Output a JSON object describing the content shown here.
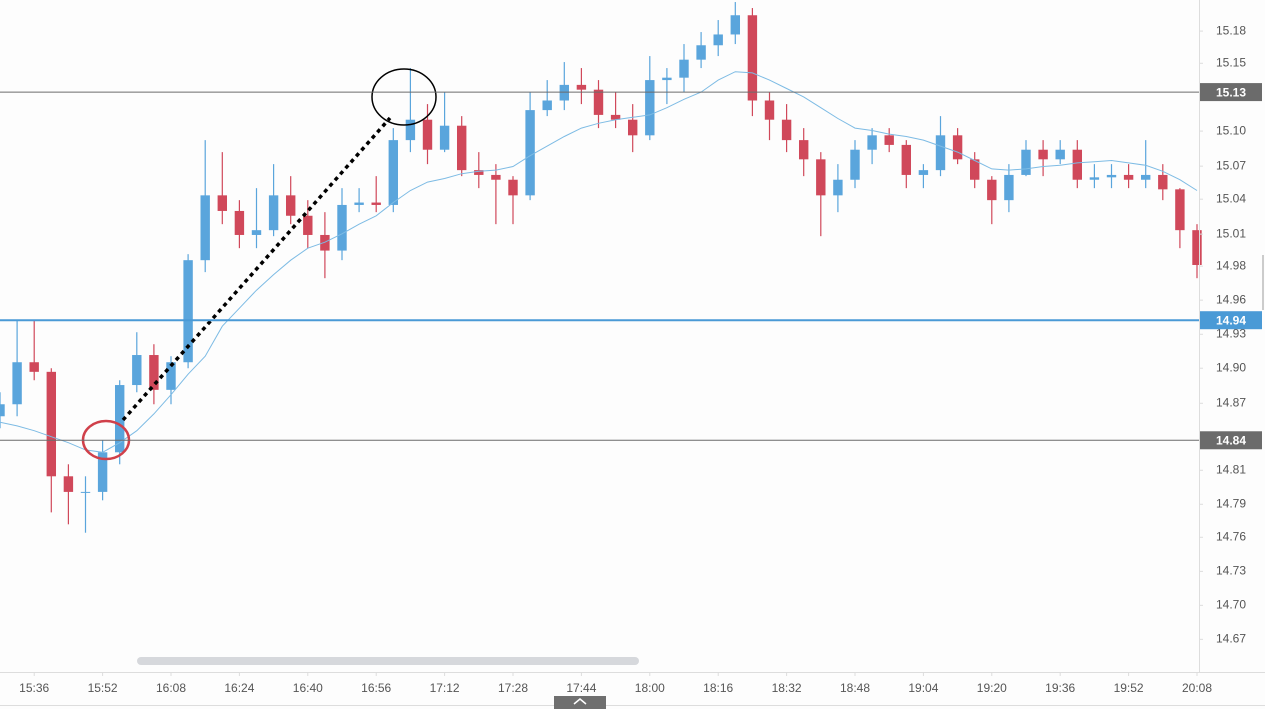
{
  "chart_data": {
    "type": "candlestick",
    "x": [
      "15:28",
      "15:32",
      "15:36",
      "15:40",
      "15:44",
      "15:48",
      "15:52",
      "15:56",
      "16:00",
      "16:04",
      "16:08",
      "16:12",
      "16:16",
      "16:20",
      "16:24",
      "16:28",
      "16:32",
      "16:36",
      "16:40",
      "16:44",
      "16:48",
      "16:52",
      "16:56",
      "17:00",
      "17:04",
      "17:08",
      "17:12",
      "17:16",
      "17:20",
      "17:24",
      "17:28",
      "17:32",
      "17:36",
      "17:40",
      "17:44",
      "17:48",
      "17:52",
      "17:56",
      "18:00",
      "18:04",
      "18:08",
      "18:12",
      "18:16",
      "18:20",
      "18:24",
      "18:28",
      "18:32",
      "18:36",
      "18:40",
      "18:44",
      "18:48",
      "18:52",
      "18:56",
      "19:00",
      "19:04",
      "19:08",
      "19:12",
      "19:16",
      "19:20",
      "19:24",
      "19:28",
      "19:32",
      "19:36",
      "19:40",
      "19:44",
      "19:48",
      "19:52",
      "19:56",
      "20:00",
      "20:04",
      "20:08"
    ],
    "open": [
      14.86,
      14.87,
      14.905,
      14.897,
      14.81,
      14.797,
      14.797,
      14.83,
      14.886,
      14.911,
      14.882,
      14.905,
      14.99,
      15.044,
      15.031,
      15.011,
      15.015,
      15.044,
      15.027,
      15.011,
      14.998,
      15.036,
      15.038,
      15.036,
      15.09,
      15.107,
      15.082,
      15.102,
      15.065,
      15.061,
      15.057,
      15.044,
      15.115,
      15.123,
      15.136,
      15.132,
      15.111,
      15.107,
      15.094,
      15.14,
      15.142,
      15.157,
      15.169,
      15.178,
      15.194,
      15.123,
      15.107,
      15.09,
      15.074,
      15.044,
      15.057,
      15.082,
      15.094,
      15.086,
      15.061,
      15.065,
      15.094,
      15.074,
      15.057,
      15.04,
      15.061,
      15.082,
      15.074,
      15.082,
      15.057,
      15.059,
      15.061,
      15.057,
      15.061,
      15.049,
      15.015
    ],
    "high": [
      14.88,
      14.94,
      14.94,
      14.9,
      14.82,
      14.81,
      14.84,
      14.89,
      14.93,
      14.92,
      14.91,
      14.995,
      15.09,
      15.08,
      15.04,
      15.05,
      15.07,
      15.06,
      15.04,
      15.03,
      15.05,
      15.05,
      15.06,
      15.1,
      15.15,
      15.12,
      15.13,
      15.11,
      15.08,
      15.07,
      15.06,
      15.13,
      15.14,
      15.155,
      15.15,
      15.14,
      15.13,
      15.12,
      15.16,
      15.15,
      15.17,
      15.18,
      15.19,
      15.205,
      15.2,
      15.13,
      15.12,
      15.1,
      15.08,
      15.07,
      15.09,
      15.1,
      15.1,
      15.09,
      15.07,
      15.11,
      15.1,
      15.08,
      15.06,
      15.07,
      15.09,
      15.09,
      15.09,
      15.09,
      15.07,
      15.07,
      15.07,
      15.09,
      15.07,
      15.05,
      15.02
    ],
    "low": [
      14.85,
      14.86,
      14.89,
      14.78,
      14.77,
      14.763,
      14.79,
      14.82,
      14.88,
      14.87,
      14.87,
      14.9,
      14.98,
      15.02,
      15.0,
      15.0,
      15.01,
      15.02,
      15.0,
      14.975,
      14.99,
      15.03,
      15.03,
      15.03,
      15.08,
      15.07,
      15.08,
      15.06,
      15.05,
      15.02,
      15.02,
      15.04,
      15.11,
      15.115,
      15.12,
      15.1,
      15.1,
      15.08,
      15.09,
      15.12,
      15.13,
      15.15,
      15.16,
      15.17,
      15.11,
      15.09,
      15.08,
      15.06,
      15.01,
      15.03,
      15.05,
      15.07,
      15.08,
      15.05,
      15.05,
      15.06,
      15.07,
      15.05,
      15.02,
      15.03,
      15.06,
      15.06,
      15.07,
      15.05,
      15.05,
      15.05,
      15.05,
      15.05,
      15.04,
      15.0,
      14.975
    ],
    "close": [
      14.87,
      14.905,
      14.897,
      14.81,
      14.797,
      14.797,
      14.83,
      14.886,
      14.911,
      14.882,
      14.905,
      14.99,
      15.044,
      15.031,
      15.011,
      15.015,
      15.044,
      15.027,
      15.011,
      14.998,
      15.036,
      15.038,
      15.036,
      15.09,
      15.107,
      15.082,
      15.102,
      15.065,
      15.061,
      15.057,
      15.044,
      15.115,
      15.123,
      15.136,
      15.132,
      15.111,
      15.107,
      15.094,
      15.14,
      15.142,
      15.157,
      15.169,
      15.178,
      15.194,
      15.123,
      15.107,
      15.09,
      15.074,
      15.044,
      15.057,
      15.082,
      15.094,
      15.086,
      15.061,
      15.065,
      15.094,
      15.074,
      15.057,
      15.04,
      15.061,
      15.082,
      15.074,
      15.082,
      15.057,
      15.059,
      15.061,
      15.057,
      15.061,
      15.049,
      15.015,
      14.986
    ],
    "ma": [
      14.855,
      14.852,
      14.848,
      14.843,
      14.838,
      14.832,
      14.83,
      14.838,
      14.848,
      14.862,
      14.878,
      14.895,
      14.91,
      14.935,
      14.95,
      14.965,
      14.978,
      14.99,
      15.0,
      15.005,
      15.012,
      15.02,
      15.027,
      15.038,
      15.048,
      15.055,
      15.058,
      15.062,
      15.064,
      15.065,
      15.068,
      15.077,
      15.085,
      15.093,
      15.1,
      15.104,
      15.107,
      15.109,
      15.111,
      15.117,
      15.124,
      15.13,
      15.14,
      15.147,
      15.146,
      15.14,
      15.133,
      15.126,
      15.117,
      15.108,
      15.1,
      15.098,
      15.095,
      15.093,
      15.09,
      15.085,
      15.08,
      15.073,
      15.066,
      15.065,
      15.066,
      15.068,
      15.069,
      15.071,
      15.072,
      15.073,
      15.071,
      15.069,
      15.064,
      15.057,
      15.048
    ],
    "up_color": "#5aa5dc",
    "down_color": "#d0485a",
    "ma_color": "#7dbbe4",
    "xlim": [
      "15:28",
      "20:08"
    ],
    "xticks": [
      "15:36",
      "15:52",
      "16:08",
      "16:24",
      "16:40",
      "16:56",
      "17:12",
      "17:28",
      "17:44",
      "18:00",
      "18:16",
      "18:32",
      "18:48",
      "19:04",
      "19:20",
      "19:36",
      "19:52",
      "20:08"
    ],
    "ylim": [
      14.647,
      15.2067
    ],
    "yticks": [
      {
        "value": 15.1808,
        "label": "15.18"
      },
      {
        "value": 15.154,
        "label": "15.15"
      },
      {
        "value": 15.0975,
        "label": "15.10"
      },
      {
        "value": 15.0683,
        "label": "15.07"
      },
      {
        "value": 15.0408,
        "label": "15.04"
      },
      {
        "value": 15.0117,
        "label": "15.01"
      },
      {
        "value": 14.985,
        "label": "14.98"
      },
      {
        "value": 14.9567,
        "label": "14.96"
      },
      {
        "value": 14.9283,
        "label": "14.93"
      },
      {
        "value": 14.9,
        "label": "14.90"
      },
      {
        "value": 14.8708,
        "label": "14.87"
      },
      {
        "value": 14.815,
        "label": "14.81"
      },
      {
        "value": 14.7867,
        "label": "14.79"
      },
      {
        "value": 14.7592,
        "label": "14.76"
      },
      {
        "value": 14.7308,
        "label": "14.73"
      },
      {
        "value": 14.7025,
        "label": "14.70"
      },
      {
        "value": 14.6742,
        "label": "14.67"
      }
    ],
    "price_lines": [
      {
        "value": 15.13,
        "color": "#6b6b6b"
      },
      {
        "value": 14.94,
        "color": "#4a9ad6"
      },
      {
        "value": 14.84,
        "color": "#6b6b6b"
      }
    ]
  }
}
